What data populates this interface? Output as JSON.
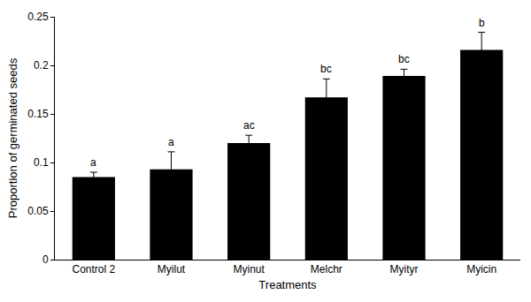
{
  "chart_data": {
    "type": "bar",
    "x_label": "Treatments",
    "y_label": "Proportion of germinated seeds",
    "categories": [
      "Control 2",
      "Myilut",
      "Myinut",
      "Melchr",
      "Myityr",
      "Myicin"
    ],
    "values": [
      0.085,
      0.093,
      0.12,
      0.167,
      0.189,
      0.216
    ],
    "errors": [
      0.005,
      0.018,
      0.008,
      0.019,
      0.007,
      0.018
    ],
    "annotations": [
      "a",
      "a",
      "ac",
      "bc",
      "bc",
      "b"
    ],
    "color": "#000000",
    "ylim": [
      0,
      0.25
    ],
    "yticks": [
      0,
      0.05,
      0.1,
      0.15,
      0.2,
      0.25
    ],
    "grid": false
  }
}
